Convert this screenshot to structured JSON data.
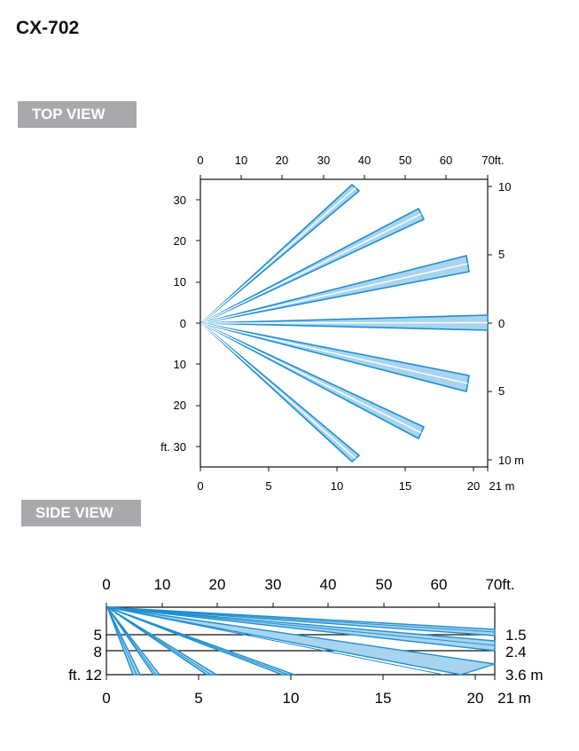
{
  "model": "CX-702",
  "top_view": {
    "label": "TOP VIEW",
    "axis_top_ft": [
      "0",
      "10",
      "20",
      "30",
      "40",
      "50",
      "60",
      "70ft."
    ],
    "axis_bottom_m": [
      "0",
      "5",
      "10",
      "15",
      "20",
      "21 m"
    ],
    "axis_left_ft": [
      "30",
      "20",
      "10",
      "0",
      "10",
      "20",
      "ft. 30"
    ],
    "axis_right_m": [
      "10",
      "5",
      "0",
      "5",
      "10 m"
    ]
  },
  "side_view": {
    "label": "SIDE VIEW",
    "axis_top_ft": [
      "0",
      "10",
      "20",
      "30",
      "40",
      "50",
      "60",
      "70ft."
    ],
    "axis_bottom_m": [
      "0",
      "5",
      "10",
      "15",
      "20",
      "21 m"
    ],
    "axis_left_ft": [
      "5",
      "8",
      "ft. 12"
    ],
    "axis_right_m": [
      "1.5",
      "2.4",
      "3.6 m"
    ]
  },
  "colors": {
    "beam_fill": "#a9d4ef",
    "beam_stroke": "#1f8fcf",
    "label_bg": "#a7a9ac"
  }
}
